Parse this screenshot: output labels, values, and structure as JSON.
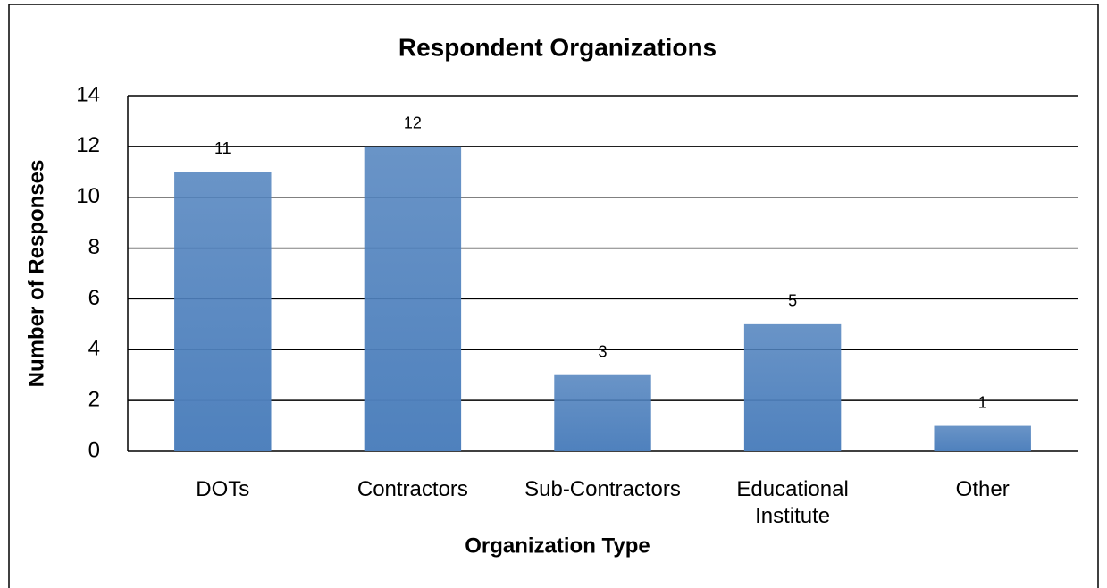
{
  "chart_data": {
    "type": "bar",
    "title": "Respondent Organizations",
    "x_label": "Organization Type",
    "y_label": "Number of Responses",
    "categories": [
      "DOTs",
      "Contractors",
      "Sub-Contractors",
      "Educational Institute",
      "Other"
    ],
    "values": [
      11,
      12,
      3,
      5,
      1
    ],
    "color": "#4f81bd",
    "ylim": [
      0,
      14
    ],
    "yticks": [
      0,
      2,
      4,
      6,
      8,
      10,
      12,
      14
    ],
    "grid": true
  }
}
